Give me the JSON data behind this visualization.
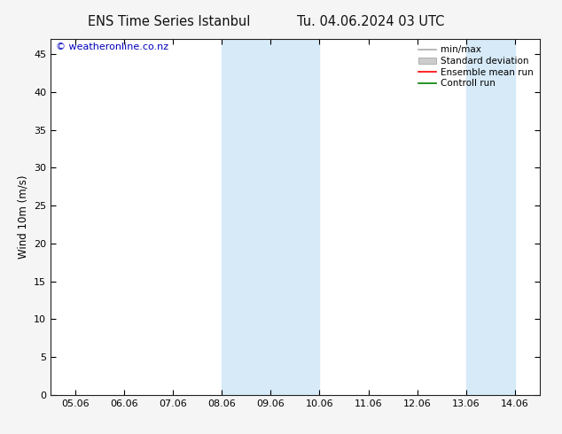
{
  "title_left": "ENS Time Series Istanbul",
  "title_right": "Tu. 04.06.2024 03 UTC",
  "ylabel": "Wind 10m (m/s)",
  "ylim": [
    0,
    47
  ],
  "yticks": [
    0,
    5,
    10,
    15,
    20,
    25,
    30,
    35,
    40,
    45
  ],
  "x_labels": [
    "05.06",
    "06.06",
    "07.06",
    "08.06",
    "09.06",
    "10.06",
    "11.06",
    "12.06",
    "13.06",
    "14.06"
  ],
  "x_positions": [
    0,
    1,
    2,
    3,
    4,
    5,
    6,
    7,
    8,
    9
  ],
  "shaded_bands": [
    {
      "xmin": 3.0,
      "xmax": 5.0
    },
    {
      "xmin": 8.0,
      "xmax": 9.0
    }
  ],
  "shade_color": "#d6eaf8",
  "background_color": "#ffffff",
  "figure_facecolor": "#f5f5f5",
  "copyright_text": "© weatheronline.co.nz",
  "copyright_color": "#0000bb",
  "legend_items": [
    {
      "label": "min/max",
      "color": "#aaaaaa",
      "type": "line"
    },
    {
      "label": "Standard deviation",
      "color": "#cccccc",
      "type": "box"
    },
    {
      "label": "Ensemble mean run",
      "color": "#ff0000",
      "type": "line"
    },
    {
      "label": "Controll run",
      "color": "#008000",
      "type": "line"
    }
  ],
  "title_fontsize": 10.5,
  "tick_fontsize": 8,
  "ylabel_fontsize": 8.5,
  "legend_fontsize": 7.5,
  "copyright_fontsize": 8
}
